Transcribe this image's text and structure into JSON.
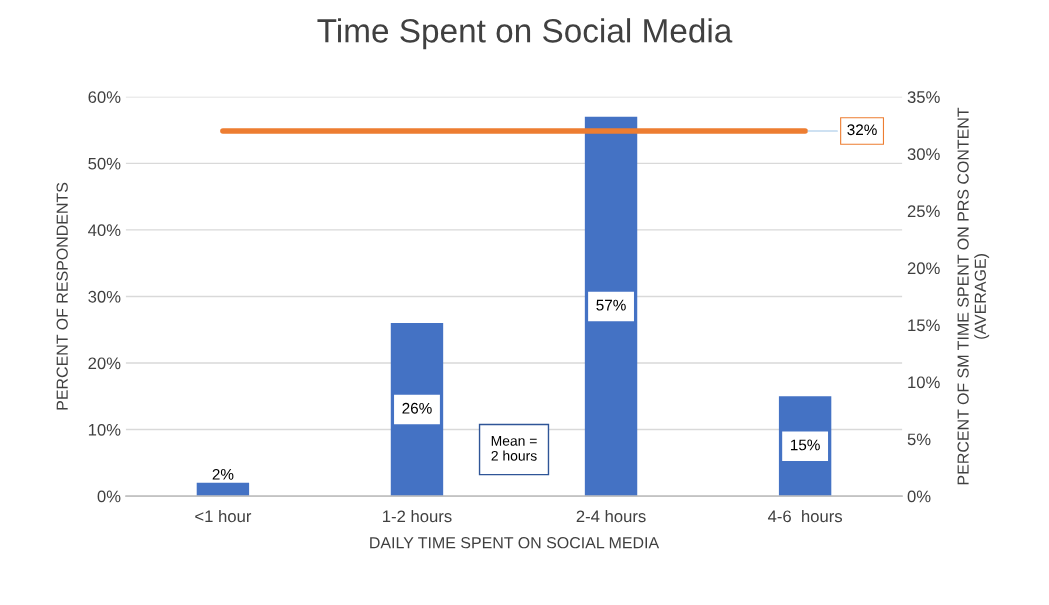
{
  "chart_data": {
    "type": "bar",
    "title": "Time Spent on Social Media",
    "xlabel": "DAILY TIME SPENT ON SOCIAL MEDIA",
    "ylabel": "PERCENT OF RESPONDENTS",
    "y2label": "PERCENT OF SM TIME SPENT ON PRS CONTENT\n(AVERAGE)",
    "categories": [
      "<1 hour",
      "1-2 hours",
      "2-4 hours",
      "4-6  hours"
    ],
    "series": [
      {
        "color": "#4472c4",
        "values": [
          2,
          26,
          57,
          15
        ],
        "value_labels": [
          "2%",
          "26%",
          "57%",
          "15%"
        ]
      },
      {
        "type": "line",
        "axis": "y2",
        "color": "#ed7d31",
        "values": [
          32,
          32,
          32,
          32
        ],
        "value_labels": [
          null,
          null,
          null,
          "32%"
        ]
      }
    ],
    "ylim": [
      0,
      60
    ],
    "yticks": [
      {
        "value": 0,
        "label": "0%"
      },
      {
        "value": 10,
        "label": "10%"
      },
      {
        "value": 20,
        "label": "20%"
      },
      {
        "value": 30,
        "label": "30%"
      },
      {
        "value": 40,
        "label": "40%"
      },
      {
        "value": 50,
        "label": "50%"
      },
      {
        "value": 60,
        "label": "60%"
      }
    ],
    "y2lim": [
      0,
      35
    ],
    "y2ticks": [
      {
        "value": 0,
        "label": "0%"
      },
      {
        "value": 5,
        "label": "5%"
      },
      {
        "value": 10,
        "label": "10%"
      },
      {
        "value": 15,
        "label": "15%"
      },
      {
        "value": 20,
        "label": "20%"
      },
      {
        "value": 25,
        "label": "25%"
      },
      {
        "value": 30,
        "label": "30%"
      },
      {
        "value": 35,
        "label": "35%"
      }
    ],
    "annotations": [
      "Mean =\n2 hours"
    ],
    "grid": "y",
    "legend": false,
    "marker": "none",
    "line_style": "solid"
  }
}
